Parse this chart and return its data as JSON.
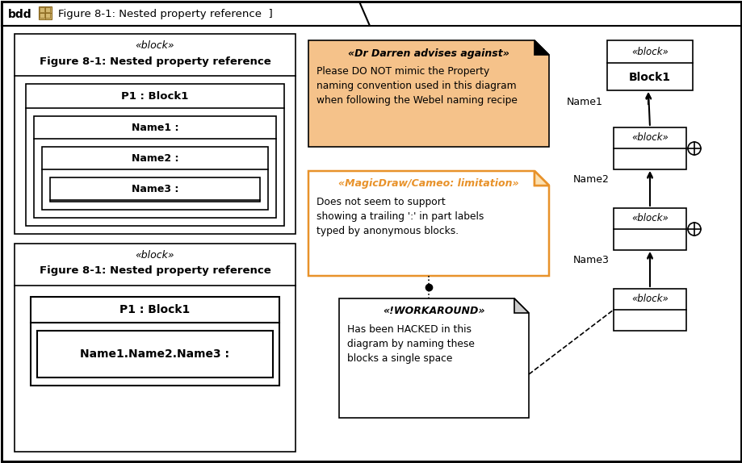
{
  "fig_width": 9.2,
  "fig_height": 5.74,
  "bg_color": "#ffffff",
  "border_color": "#000000",
  "orange_fill": "#f5c28a",
  "orange_border": "#e8922a",
  "top_box": {
    "stereotype": "«block»",
    "title": "Figure 8-1: Nested property reference",
    "p1_label": "P1 : Block1",
    "name1": "Name1 :",
    "name2": "Name2 :",
    "name3": "Name3 :"
  },
  "bottom_box": {
    "stereotype": "«block»",
    "title": "Figure 8-1: Nested property reference",
    "p1_label": "P1 : Block1",
    "name_label": "Name1.Name2.Name3 :"
  },
  "note1": {
    "stereotype": "«Dr Darren advises against»",
    "text": "Please DO NOT mimic the Property\nnaming convention used in this diagram\nwhen following the Webel naming recipe"
  },
  "note2": {
    "stereotype": "«MagicDraw/Cameo: limitation»",
    "text": "Does not seem to support\nshowing a trailing ':' in part labels\ntyped by anonymous blocks."
  },
  "note3": {
    "stereotype": "«!WORKAROUND»",
    "text": "Has been HACKED in this\ndiagram by naming these\nblocks a single space"
  }
}
